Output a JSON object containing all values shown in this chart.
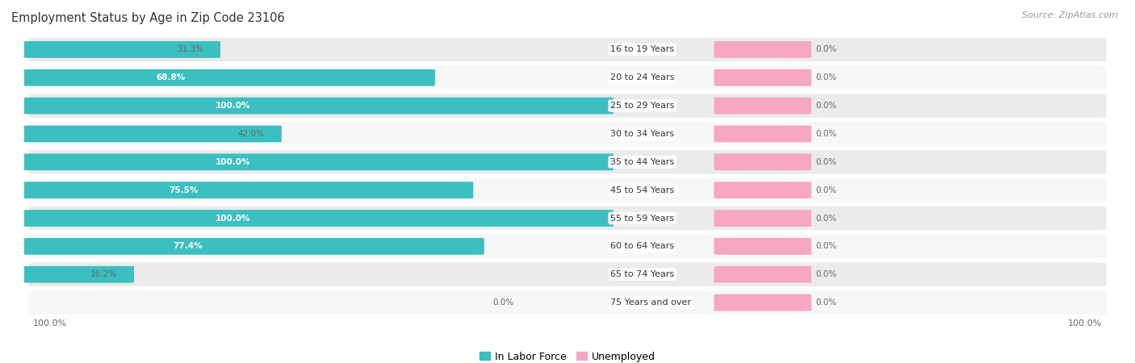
{
  "title": "Employment Status by Age in Zip Code 23106",
  "source": "Source: ZipAtlas.com",
  "age_groups": [
    "16 to 19 Years",
    "20 to 24 Years",
    "25 to 29 Years",
    "30 to 34 Years",
    "35 to 44 Years",
    "45 to 54 Years",
    "55 to 59 Years",
    "60 to 64 Years",
    "65 to 74 Years",
    "75 Years and over"
  ],
  "in_labor_force": [
    31.3,
    68.8,
    100.0,
    42.0,
    100.0,
    75.5,
    100.0,
    77.4,
    16.2,
    0.0
  ],
  "unemployed": [
    0.0,
    0.0,
    0.0,
    0.0,
    0.0,
    0.0,
    0.0,
    0.0,
    0.0,
    0.0
  ],
  "labor_force_color": "#3bbfc0",
  "unemployed_color": "#f5a8bf",
  "row_bg_odd": "#ebebeb",
  "row_bg_even": "#f7f7f7",
  "label_color_light": "#ffffff",
  "label_color_dark": "#666666",
  "title_fontsize": 10.5,
  "source_fontsize": 8,
  "bar_label_fontsize": 7.5,
  "age_label_fontsize": 8,
  "legend_fontsize": 9,
  "tick_fontsize": 8
}
